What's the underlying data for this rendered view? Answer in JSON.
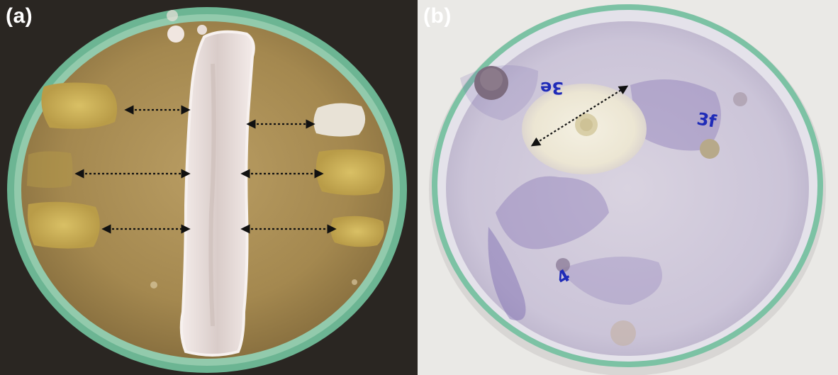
{
  "panels": [
    {
      "label": "(a)",
      "colors": {
        "background": "#2a2622",
        "agar": "#a98f5a",
        "rim": "#7fc9a4",
        "streak": "#efe6e3",
        "colony": "#cdb25a",
        "arrow": "#111111"
      }
    },
    {
      "label": "(b)",
      "marks": [
        "3e",
        "3f",
        "4"
      ],
      "colors": {
        "background": "#eae9e6",
        "agar": "#d7d2df",
        "stain": "#6f5fa8",
        "halo": "#efeadf",
        "ink": "#1f2bb8",
        "rim": "#6fb89a"
      }
    }
  ]
}
